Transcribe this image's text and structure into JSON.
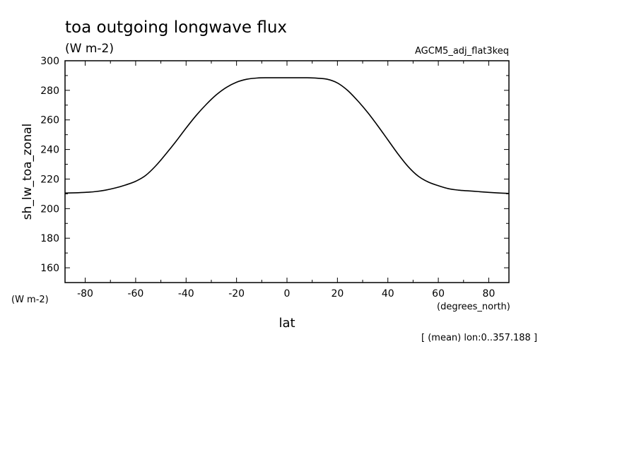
{
  "chart_data": {
    "type": "line",
    "title": "toa outgoing longwave flux",
    "units": "(W m-2)",
    "dataset": "AGCM5_adj_flat3keq",
    "xlabel": "lat",
    "x_units": "(degrees_north)",
    "ylabel": "sh_lw_toa_zonal",
    "y_units": "(W m-2)",
    "footnote": "[ (mean) lon:0..357.188 ]",
    "xlim": [
      -88,
      88
    ],
    "ylim": [
      150,
      300
    ],
    "x_ticks": [
      -80,
      -60,
      -40,
      -20,
      0,
      20,
      40,
      60,
      80
    ],
    "x_tick_labels": [
      "-80",
      "-60",
      "-40",
      "-20",
      "0",
      "20",
      "40",
      "60",
      "80"
    ],
    "y_ticks": [
      160,
      180,
      200,
      220,
      240,
      260,
      280,
      300
    ],
    "y_tick_labels": [
      "160",
      "180",
      "200",
      "220",
      "240",
      "260",
      "280",
      "300"
    ],
    "grid": false,
    "series": [
      {
        "color": "#000000",
        "x": [
          -88,
          -84,
          -80,
          -76,
          -72,
          -68,
          -64,
          -60,
          -56,
          -52,
          -48,
          -44,
          -40,
          -36,
          -32,
          -28,
          -24,
          -20,
          -16,
          -12,
          -8,
          -4,
          0,
          4,
          8,
          12,
          16,
          20,
          24,
          28,
          32,
          36,
          40,
          44,
          48,
          52,
          56,
          60,
          64,
          68,
          72,
          76,
          80,
          84,
          88
        ],
        "y": [
          210.5,
          210.7,
          211.0,
          211.5,
          212.5,
          214.0,
          216.0,
          218.5,
          222.5,
          229.0,
          237.0,
          245.5,
          254.5,
          263.0,
          270.5,
          277.0,
          282.0,
          285.5,
          287.5,
          288.3,
          288.5,
          288.5,
          288.5,
          288.5,
          288.5,
          288.2,
          287.5,
          285.0,
          280.0,
          273.0,
          265.0,
          256.0,
          246.5,
          237.0,
          228.5,
          222.0,
          218.0,
          215.5,
          213.5,
          212.5,
          212.0,
          211.5,
          211.0,
          210.6,
          210.3
        ]
      }
    ]
  }
}
